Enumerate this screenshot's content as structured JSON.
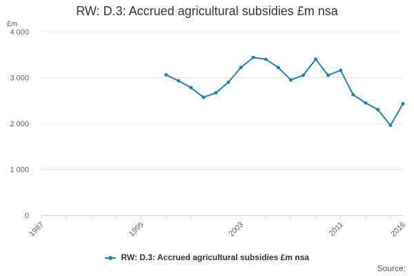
{
  "chart_data": {
    "type": "line",
    "title": "RW: D.3: Accrued agricultural subsidies £m nsa",
    "ylabel": "£m",
    "xlabel": "",
    "ylim": [
      0,
      4000
    ],
    "xlim": [
      1987,
      2016
    ],
    "y_ticks": [
      "0",
      "1 000",
      "2 000",
      "3 000",
      "4 000"
    ],
    "y_tick_values": [
      0,
      1000,
      2000,
      3000,
      4000
    ],
    "x_ticks": [
      "1987",
      "1995",
      "2003",
      "2011",
      "2016"
    ],
    "x_tick_values": [
      1987,
      1995,
      2003,
      2011,
      2016
    ],
    "grid": true,
    "legend_position": "bottom",
    "color": "#1c81b8",
    "x": [
      1997,
      1998,
      1999,
      2000,
      2001,
      2002,
      2003,
      2004,
      2005,
      2006,
      2007,
      2008,
      2009,
      2010,
      2011,
      2012,
      2013,
      2014,
      2015,
      2016
    ],
    "series": [
      {
        "name": "RW: D.3: Accrued agricultural subsidies £m nsa",
        "values": [
          3060,
          2930,
          2780,
          2570,
          2670,
          2900,
          3220,
          3440,
          3400,
          3220,
          2950,
          3050,
          3400,
          3050,
          3160,
          2630,
          2450,
          2300,
          1960,
          2430
        ]
      }
    ]
  },
  "credits": "Source:"
}
